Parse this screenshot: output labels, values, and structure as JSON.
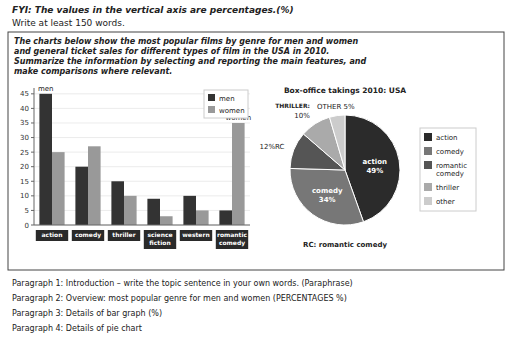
{
  "title": "FYI: The values in the vertical axis are percentages.(%)",
  "subtitle": "Write at least 150 words.",
  "annotations": [
    "The charts below show the most popular films by genre for men and women\nand general ticket sales for different types of film in the USA in 2010.\nSummarize the information by selecting and reporting the main features, and\nmake comparisons where relevant.",
    "Paragraph 1: Introduction – write the topic sentence in your own words. (Paraphrase)",
    "Paragraph 2: Overview: most popular genre for men and women (PERCENTAGES %)",
    "Paragraph 3: Details of bar graph (%)",
    "Paragraph 4: Details of pie chart"
  ],
  "chart_data": [
    {
      "type": "bar",
      "categories": [
        "action",
        "comedy",
        "thriller",
        "science\nfiction",
        "western",
        "romantic\ncomedy"
      ],
      "series": [
        {
          "name": "men",
          "color": "#333333",
          "values": [
            45,
            20,
            15,
            9,
            10,
            5
          ]
        },
        {
          "name": "women",
          "color": "#999999",
          "values": [
            25,
            27,
            10,
            3,
            5,
            35
          ]
        }
      ],
      "ylim": [
        0,
        47
      ],
      "yticks": [
        0,
        5,
        10,
        15,
        20,
        25,
        30,
        35,
        40,
        45
      ],
      "grid": true,
      "legend": "upper right",
      "annotations": [
        "men",
        "women"
      ]
    },
    {
      "type": "pie",
      "title": "Box-office takings 2010: USA",
      "categories": [
        "action",
        "comedy",
        "romantic\ncomedy",
        "thriller",
        "other"
      ],
      "values": [
        49,
        34,
        12,
        10,
        5
      ],
      "colors": [
        "#2b2b2b",
        "#777777",
        "#555555",
        "#aaaaaa",
        "#cccccc"
      ],
      "data_labels": true,
      "value_labels": [
        "49%",
        "34%",
        "12%RC",
        "10%",
        "OTHER 5%"
      ],
      "legend": "right",
      "annotations": [
        "action",
        "comedy",
        "THRILLER:",
        "RC: romantic comedy"
      ]
    }
  ]
}
